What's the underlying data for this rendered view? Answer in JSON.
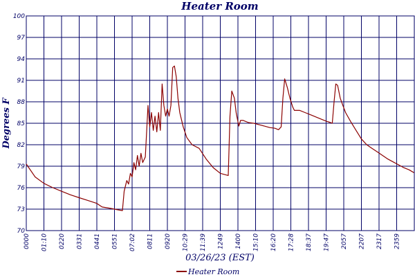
{
  "chart_data": {
    "type": "line",
    "title": "Heater Room",
    "xlabel": "03/26/23 (EST)",
    "ylabel": "Degrees F",
    "ylim": [
      70,
      100
    ],
    "y_ticks": [
      "70",
      "73",
      "76",
      "79",
      "82",
      "85",
      "88",
      "91",
      "94",
      "97",
      "100"
    ],
    "x_ticks": [
      "0000",
      "01:10",
      "0220",
      "0331",
      "0441",
      "0551",
      "07:02",
      "0811",
      "0920",
      "10:29",
      "11:39",
      "1249",
      "1400",
      "15:10",
      "16:20",
      "17:28",
      "18:37",
      "19:47",
      "2057",
      "2207",
      "2317",
      "2359"
    ],
    "grid": true,
    "legend": "bottom-center",
    "colors": {
      "series": "#8b0000",
      "grid": "#000066",
      "text": "#000066"
    },
    "series": [
      {
        "name": "Heater Room",
        "points": [
          [
            0.0,
            79.3
          ],
          [
            0.5,
            77.5
          ],
          [
            1.0,
            76.6
          ],
          [
            1.5,
            76.0
          ],
          [
            2.0,
            75.5
          ],
          [
            2.5,
            75.0
          ],
          [
            3.0,
            74.6
          ],
          [
            3.5,
            74.2
          ],
          [
            4.0,
            73.8
          ],
          [
            4.3,
            73.3
          ],
          [
            4.8,
            73.1
          ],
          [
            5.2,
            72.9
          ],
          [
            5.45,
            72.8
          ],
          [
            5.55,
            75.5
          ],
          [
            5.7,
            77.0
          ],
          [
            5.8,
            76.5
          ],
          [
            5.9,
            78.0
          ],
          [
            6.0,
            77.5
          ],
          [
            6.1,
            79.5
          ],
          [
            6.2,
            78.5
          ],
          [
            6.3,
            80.5
          ],
          [
            6.4,
            79.0
          ],
          [
            6.5,
            80.8
          ],
          [
            6.6,
            79.5
          ],
          [
            6.75,
            80.3
          ],
          [
            6.9,
            87.5
          ],
          [
            7.0,
            84.5
          ],
          [
            7.1,
            86.5
          ],
          [
            7.2,
            84.0
          ],
          [
            7.3,
            86.0
          ],
          [
            7.4,
            83.8
          ],
          [
            7.5,
            86.5
          ],
          [
            7.6,
            84.0
          ],
          [
            7.7,
            90.5
          ],
          [
            7.8,
            87.5
          ],
          [
            7.9,
            86.0
          ],
          [
            8.0,
            87.0
          ],
          [
            8.1,
            86.0
          ],
          [
            8.2,
            87.5
          ],
          [
            8.3,
            92.8
          ],
          [
            8.4,
            93.0
          ],
          [
            8.5,
            91.5
          ],
          [
            8.6,
            88.5
          ],
          [
            8.7,
            86.5
          ],
          [
            8.9,
            84.5
          ],
          [
            9.1,
            83.0
          ],
          [
            9.4,
            82.0
          ],
          [
            9.8,
            81.5
          ],
          [
            10.2,
            80.0
          ],
          [
            10.6,
            78.8
          ],
          [
            11.0,
            78.0
          ],
          [
            11.3,
            77.8
          ],
          [
            11.45,
            77.7
          ],
          [
            11.5,
            82.0
          ],
          [
            11.55,
            86.0
          ],
          [
            11.65,
            89.5
          ],
          [
            11.8,
            88.5
          ],
          [
            11.9,
            86.5
          ],
          [
            12.0,
            85.2
          ],
          [
            12.05,
            84.6
          ],
          [
            12.15,
            85.4
          ],
          [
            12.3,
            85.4
          ],
          [
            12.6,
            85.1
          ],
          [
            12.9,
            85.0
          ],
          [
            13.2,
            84.8
          ],
          [
            13.5,
            84.6
          ],
          [
            13.8,
            84.4
          ],
          [
            14.1,
            84.3
          ],
          [
            14.3,
            84.1
          ],
          [
            14.45,
            84.5
          ],
          [
            14.55,
            88.5
          ],
          [
            14.65,
            91.2
          ],
          [
            14.8,
            90.0
          ],
          [
            14.95,
            88.5
          ],
          [
            15.1,
            87.3
          ],
          [
            15.2,
            86.8
          ],
          [
            15.5,
            86.8
          ],
          [
            15.8,
            86.5
          ],
          [
            16.1,
            86.2
          ],
          [
            16.4,
            85.9
          ],
          [
            16.7,
            85.6
          ],
          [
            17.0,
            85.3
          ],
          [
            17.25,
            85.1
          ],
          [
            17.35,
            85.0
          ],
          [
            17.45,
            88.0
          ],
          [
            17.55,
            90.5
          ],
          [
            17.65,
            90.3
          ],
          [
            17.8,
            88.5
          ],
          [
            17.95,
            87.5
          ],
          [
            18.1,
            86.5
          ],
          [
            18.4,
            85.2
          ],
          [
            18.7,
            84.0
          ],
          [
            19.0,
            82.8
          ],
          [
            19.3,
            82.0
          ],
          [
            19.6,
            81.5
          ],
          [
            19.9,
            81.0
          ],
          [
            20.2,
            80.5
          ],
          [
            20.5,
            80.0
          ],
          [
            20.8,
            79.6
          ],
          [
            21.1,
            79.2
          ],
          [
            21.4,
            78.8
          ],
          [
            21.7,
            78.5
          ],
          [
            21.98,
            78.1
          ]
        ]
      }
    ]
  }
}
